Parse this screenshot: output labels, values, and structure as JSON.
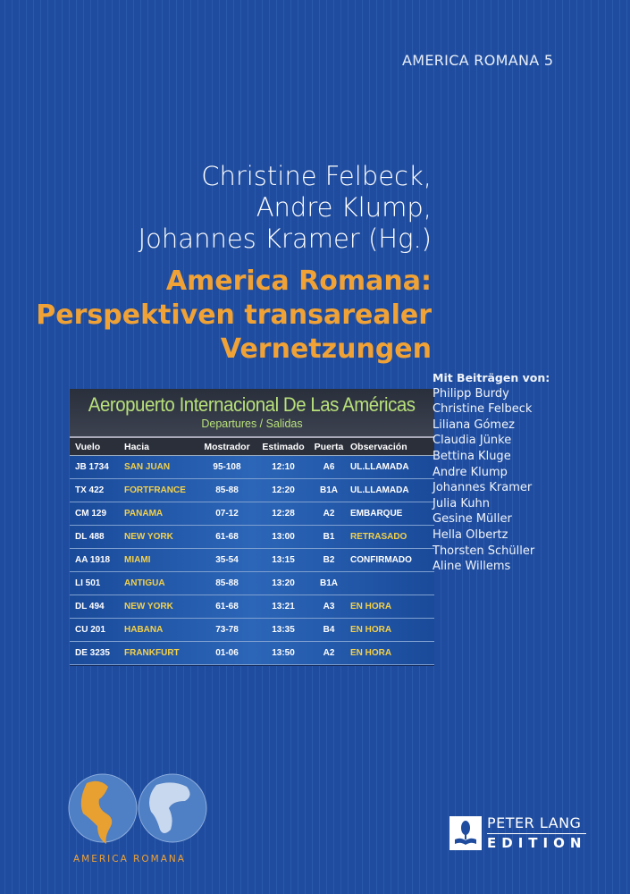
{
  "series": "AMERICA ROMANA 5",
  "authors": [
    "Christine Felbeck,",
    "Andre Klump,",
    "Johannes Kramer (Hg.)"
  ],
  "title": [
    "America Romana:",
    "Perspektiven transarealer",
    "Vernetzungen"
  ],
  "board": {
    "title": "Aeropuerto Internacional De Las Américas",
    "subtitle": "Departures / Salidas",
    "headers": [
      "Vuelo",
      "Hacia",
      "Mostrador",
      "Estimado",
      "Puerta",
      "Observación"
    ],
    "rows": [
      [
        "JB 1734",
        "SAN JUAN",
        "95-108",
        "12:10",
        "A6",
        "UL.LLAMADA"
      ],
      [
        "TX 422",
        "FORTFRANCE",
        "85-88",
        "12:20",
        "B1A",
        "UL.LLAMADA"
      ],
      [
        "CM 129",
        "PANAMA",
        "07-12",
        "12:28",
        "A2",
        "EMBARQUE"
      ],
      [
        "DL 488",
        "NEW YORK",
        "61-68",
        "13:00",
        "B1",
        "RETRASADO"
      ],
      [
        "AA 1918",
        "MIAMI",
        "35-54",
        "13:15",
        "B2",
        "CONFIRMADO"
      ],
      [
        "LI 501",
        "ANTIGUA",
        "85-88",
        "13:20",
        "B1A",
        ""
      ],
      [
        "DL 494",
        "NEW YORK",
        "61-68",
        "13:21",
        "A3",
        "EN HORA"
      ],
      [
        "CU 201",
        "HABANA",
        "73-78",
        "13:35",
        "B4",
        "EN HORA"
      ],
      [
        "DE 3235",
        "FRANKFURT",
        "01-06",
        "13:50",
        "A2",
        "EN HORA"
      ]
    ],
    "status_colors": {
      "UL.LLAMADA": "#ffffff",
      "EMBARQUE": "#ffffff",
      "RETRASADO": "#f3d14a",
      "CONFIRMADO": "#ffffff",
      "EN HORA": "#f3d14a"
    }
  },
  "contributors": {
    "label": "Mit Beiträgen von:",
    "names": [
      "Philipp Burdy",
      "Christine Felbeck",
      "Liliana Gómez",
      "Claudia Jünke",
      "Bettina Kluge",
      "Andre Klump",
      "Johannes Kramer",
      "Julia Kuhn",
      "Gesine Müller",
      "Hella Olbertz",
      "Thorsten Schüller",
      "Aline Willems"
    ]
  },
  "series_logo": "AMERICA ROMANA",
  "publisher": {
    "line1": "PETER LANG",
    "line2": "EDITION"
  },
  "colors": {
    "background": "#1f4c9e",
    "title": "#f0a236"
  }
}
